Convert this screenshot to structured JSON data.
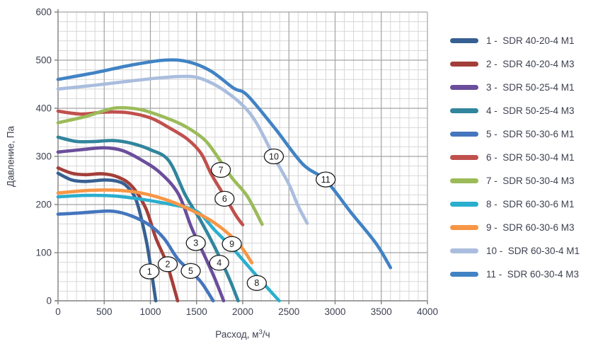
{
  "page": {
    "background": "#FFFFFF"
  },
  "chart_data": {
    "type": "line",
    "title": "",
    "xlabel_prefix": "Расход, м",
    "xlabel_sup": "3",
    "xlabel_suffix": "/ч",
    "xlabel_full": "Расход, м³/ч",
    "ylabel": "Давление, Па",
    "xlim": [
      0,
      4000
    ],
    "ylim": [
      0,
      600
    ],
    "x_tick_step": 500,
    "x_minor_step": 100,
    "y_tick_step": 100,
    "y_minor_step": 20,
    "x_ticks": [
      "0",
      "500",
      "1000",
      "1500",
      "2000",
      "2500",
      "3000",
      "3500",
      "4000"
    ],
    "y_ticks": [
      "0",
      "100",
      "200",
      "300",
      "400",
      "500",
      "600"
    ],
    "grid": {
      "minor_color": "#D7D7D7",
      "major_color": "#A3A3A3",
      "axis_color": "#808080"
    },
    "text_color": "#3E4151",
    "badge": {
      "fill": "#FFFFFF",
      "stroke": "#1A1A1A",
      "text_color": "#1A1A1A"
    },
    "legend_position": "right",
    "legend_separator": " -  ",
    "series": [
      {
        "num": "1",
        "name": "SDR 40-20-4 M1",
        "color": "#376092",
        "label_pos": [
          990,
          61
        ],
        "points": [
          [
            0,
            265
          ],
          [
            150,
            251
          ],
          [
            300,
            248
          ],
          [
            500,
            251
          ],
          [
            650,
            248
          ],
          [
            750,
            237
          ],
          [
            850,
            207
          ],
          [
            950,
            130
          ],
          [
            1010,
            62
          ],
          [
            1058,
            0
          ]
        ]
      },
      {
        "num": "2",
        "name": "SDR 40-20-4 M3",
        "color": "#A43E39",
        "label_pos": [
          1188,
          76
        ],
        "points": [
          [
            0,
            276
          ],
          [
            150,
            265
          ],
          [
            300,
            262
          ],
          [
            480,
            264
          ],
          [
            650,
            257
          ],
          [
            800,
            238
          ],
          [
            950,
            192
          ],
          [
            1060,
            130
          ],
          [
            1180,
            76
          ],
          [
            1295,
            0
          ]
        ]
      },
      {
        "num": "3",
        "name": "SDR 50-25-4 M1",
        "color": "#6A4E9B",
        "label_pos": [
          1492,
          120
        ],
        "points": [
          [
            0,
            309
          ],
          [
            250,
            314
          ],
          [
            500,
            318
          ],
          [
            700,
            312
          ],
          [
            900,
            293
          ],
          [
            1100,
            267
          ],
          [
            1300,
            223
          ],
          [
            1450,
            150
          ],
          [
            1600,
            88
          ],
          [
            1700,
            45
          ],
          [
            1793,
            0
          ]
        ]
      },
      {
        "num": "4",
        "name": "SDR 50-25-4 M3",
        "color": "#31859C",
        "label_pos": [
          1745,
          79
        ],
        "points": [
          [
            0,
            340
          ],
          [
            200,
            331
          ],
          [
            400,
            331
          ],
          [
            600,
            333
          ],
          [
            800,
            327
          ],
          [
            1000,
            314
          ],
          [
            1200,
            291
          ],
          [
            1380,
            219
          ],
          [
            1540,
            168
          ],
          [
            1700,
            110
          ],
          [
            1850,
            48
          ],
          [
            1950,
            0
          ]
        ]
      },
      {
        "num": "5",
        "name": "SDR 50-30-6 M1",
        "color": "#4575BE",
        "label_pos": [
          1437,
          62
        ],
        "points": [
          [
            0,
            180
          ],
          [
            200,
            182
          ],
          [
            400,
            185
          ],
          [
            600,
            186
          ],
          [
            800,
            176
          ],
          [
            1000,
            156
          ],
          [
            1150,
            129
          ],
          [
            1300,
            86
          ],
          [
            1450,
            59
          ],
          [
            1560,
            36
          ],
          [
            1680,
            0
          ]
        ]
      },
      {
        "num": "6",
        "name": "SDR 50-30-4 M1",
        "color": "#C0504D",
        "label_pos": [
          1803,
          212
        ],
        "points": [
          [
            0,
            394
          ],
          [
            250,
            388
          ],
          [
            500,
            392
          ],
          [
            750,
            391
          ],
          [
            1000,
            380
          ],
          [
            1200,
            360
          ],
          [
            1400,
            336
          ],
          [
            1550,
            306
          ],
          [
            1660,
            263
          ],
          [
            1820,
            212
          ],
          [
            1930,
            176
          ],
          [
            2000,
            158
          ]
        ]
      },
      {
        "num": "7",
        "name": "SDR 50-30-4 M3",
        "color": "#9BBB59",
        "label_pos": [
          1763,
          272
        ],
        "points": [
          [
            0,
            370
          ],
          [
            300,
            383
          ],
          [
            500,
            395
          ],
          [
            650,
            401
          ],
          [
            900,
            397
          ],
          [
            1200,
            378
          ],
          [
            1400,
            360
          ],
          [
            1600,
            332
          ],
          [
            1760,
            290
          ],
          [
            1890,
            254
          ],
          [
            2050,
            217
          ],
          [
            2210,
            159
          ]
        ]
      },
      {
        "num": "8",
        "name": "SDR 60-30-6 M1",
        "color": "#2AAECE",
        "label_pos": [
          2152,
          37
        ],
        "points": [
          [
            0,
            216
          ],
          [
            300,
            219
          ],
          [
            600,
            218
          ],
          [
            900,
            211
          ],
          [
            1200,
            201
          ],
          [
            1500,
            186
          ],
          [
            1700,
            146
          ],
          [
            1900,
            107
          ],
          [
            2150,
            52
          ],
          [
            2395,
            0
          ]
        ]
      },
      {
        "num": "9",
        "name": "SDR 60-30-6 M3",
        "color": "#F79646",
        "label_pos": [
          1882,
          118
        ],
        "points": [
          [
            0,
            224
          ],
          [
            300,
            229
          ],
          [
            600,
            230
          ],
          [
            900,
            224
          ],
          [
            1200,
            208
          ],
          [
            1500,
            183
          ],
          [
            1700,
            161
          ],
          [
            1900,
            130
          ],
          [
            2000,
            108
          ],
          [
            2098,
            79
          ]
        ]
      },
      {
        "num": "10",
        "name": "SDR 60-30-4 M1",
        "color": "#AABDDE",
        "label_pos": [
          2337,
          300
        ],
        "points": [
          [
            0,
            440
          ],
          [
            400,
            448
          ],
          [
            800,
            457
          ],
          [
            1150,
            464
          ],
          [
            1430,
            466
          ],
          [
            1600,
            458
          ],
          [
            1800,
            437
          ],
          [
            2000,
            406
          ],
          [
            2150,
            369
          ],
          [
            2350,
            295
          ],
          [
            2500,
            242
          ],
          [
            2600,
            197
          ],
          [
            2698,
            161
          ]
        ]
      },
      {
        "num": "11",
        "name": "SDR 60-30-4 M3",
        "color": "#4183C4",
        "label_pos": [
          2898,
          252
        ],
        "points": [
          [
            0,
            460
          ],
          [
            400,
            474
          ],
          [
            800,
            490
          ],
          [
            1150,
            500
          ],
          [
            1400,
            497
          ],
          [
            1650,
            478
          ],
          [
            1900,
            442
          ],
          [
            2050,
            427
          ],
          [
            2350,
            358
          ],
          [
            2650,
            284
          ],
          [
            2900,
            250
          ],
          [
            3170,
            184
          ],
          [
            3440,
            120
          ],
          [
            3600,
            69
          ]
        ]
      }
    ]
  }
}
